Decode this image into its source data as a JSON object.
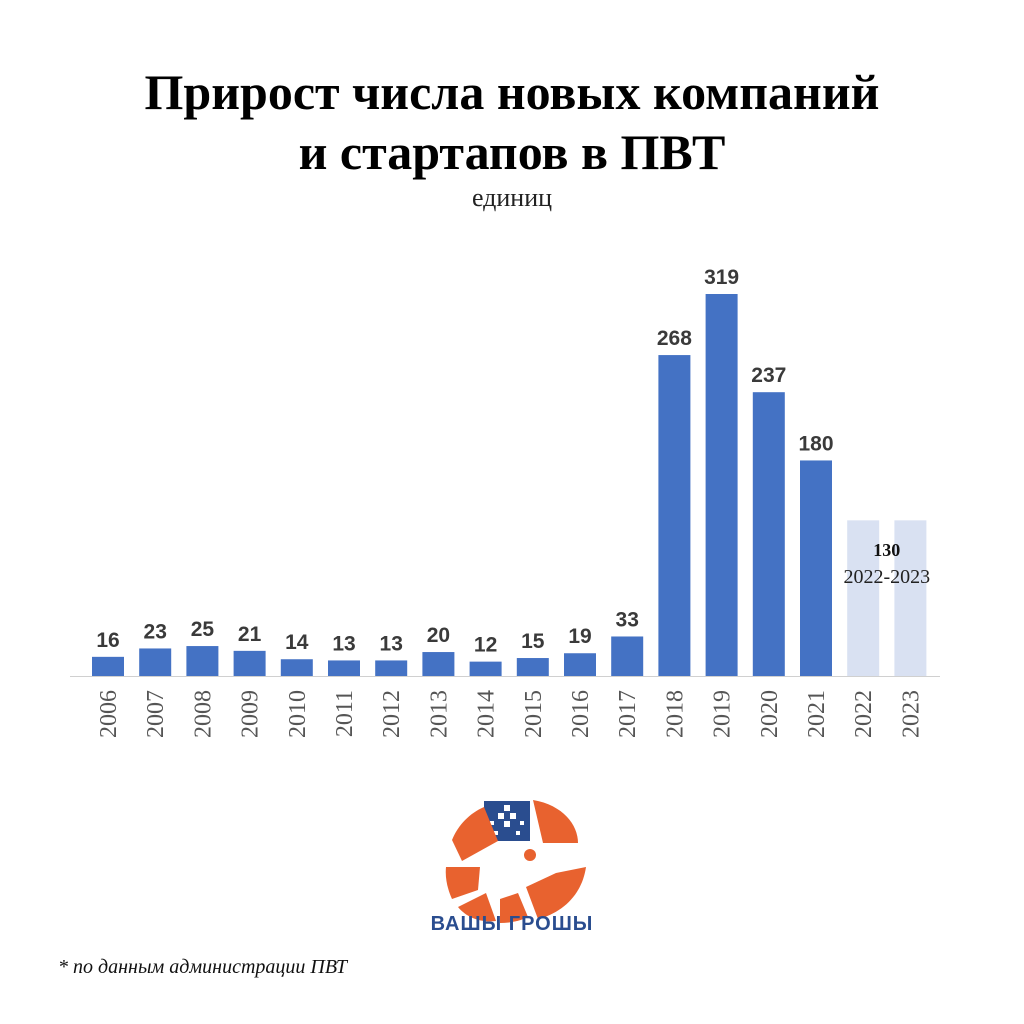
{
  "title_line1": "Прирост числа новых компаний",
  "title_line2": "и стартапов в ПВТ",
  "subtitle": "единиц",
  "footnote": "* по данным администрации ПВТ",
  "brand": {
    "name": "ВАШЫ ГРОШЫ",
    "color": "#2a4d8f",
    "accent": "#e8622f"
  },
  "colors": {
    "bar": "#4472c4",
    "bar_light": "#d9e1f2",
    "label": "#3a3a3a",
    "axis": "#d0d0d0"
  },
  "chart_data": {
    "type": "bar",
    "title": "Прирост числа новых компаний и стартапов в ПВТ",
    "unit": "единиц",
    "categories": [
      "2006",
      "2007",
      "2008",
      "2009",
      "2010",
      "2011",
      "2012",
      "2013",
      "2014",
      "2015",
      "2016",
      "2017",
      "2018",
      "2019",
      "2020",
      "2021",
      "2022",
      "2023"
    ],
    "values": [
      16,
      23,
      25,
      21,
      14,
      13,
      13,
      20,
      12,
      15,
      19,
      33,
      268,
      319,
      237,
      180,
      130,
      130
    ],
    "value_labels": [
      "16",
      "23",
      "25",
      "21",
      "14",
      "13",
      "13",
      "20",
      "12",
      "15",
      "19",
      "33",
      "268",
      "319",
      "237",
      "180",
      "",
      ""
    ],
    "combined_annotation": {
      "value": "130",
      "label": "2022-2023",
      "categories": [
        "2022",
        "2023"
      ]
    },
    "highlight_light": [
      "2022",
      "2023"
    ],
    "ylim": [
      0,
      319
    ],
    "grid": false
  }
}
